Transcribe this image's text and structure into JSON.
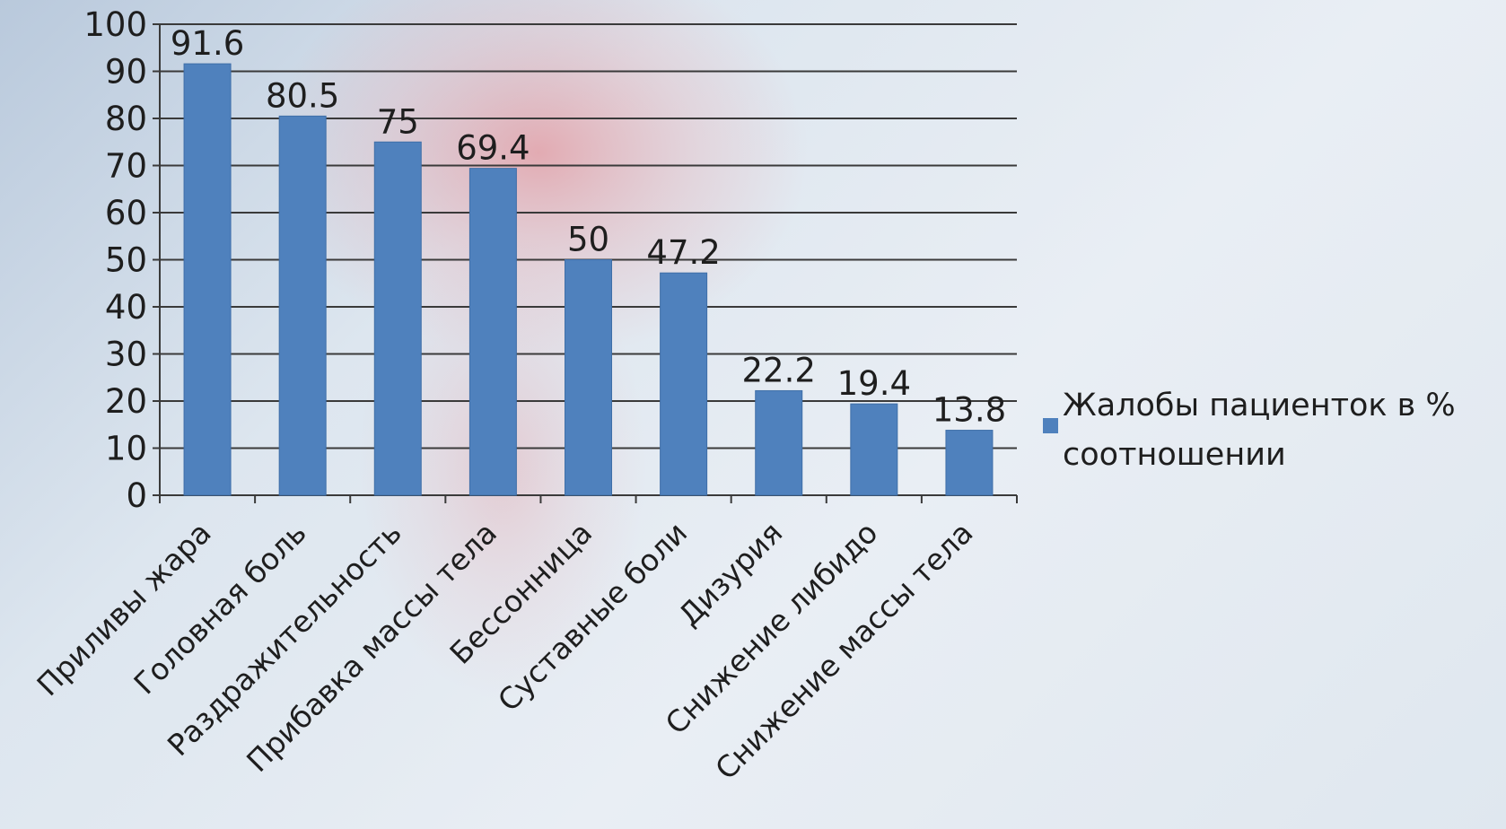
{
  "chart_data": {
    "type": "bar",
    "categories": [
      "Приливы жара",
      "Головная боль",
      "Раздражительность",
      "Прибавка массы тела",
      "Бессонница",
      "Суставные боли",
      "Дизурия",
      "Снижение либидо",
      "Снижение массы тела"
    ],
    "series": [
      {
        "name": "Жалобы пациенток в % соотношении",
        "values": [
          91.6,
          80.5,
          75,
          69.4,
          50,
          47.2,
          22.2,
          19.4,
          13.8
        ],
        "labels": [
          "91.6",
          "80.5",
          "75",
          "69.4",
          "50",
          "47.2",
          "22.2",
          "19.4",
          "13.8"
        ]
      }
    ],
    "ylim": [
      0,
      100
    ],
    "yticks": [
      "0",
      "10",
      "20",
      "30",
      "40",
      "50",
      "60",
      "70",
      "80",
      "90",
      "100"
    ],
    "legend": {
      "position": "right",
      "lines": [
        "Жалобы пациенток в %",
        "соотношении"
      ]
    },
    "grid": true,
    "bar_color": "#4f81bd"
  }
}
